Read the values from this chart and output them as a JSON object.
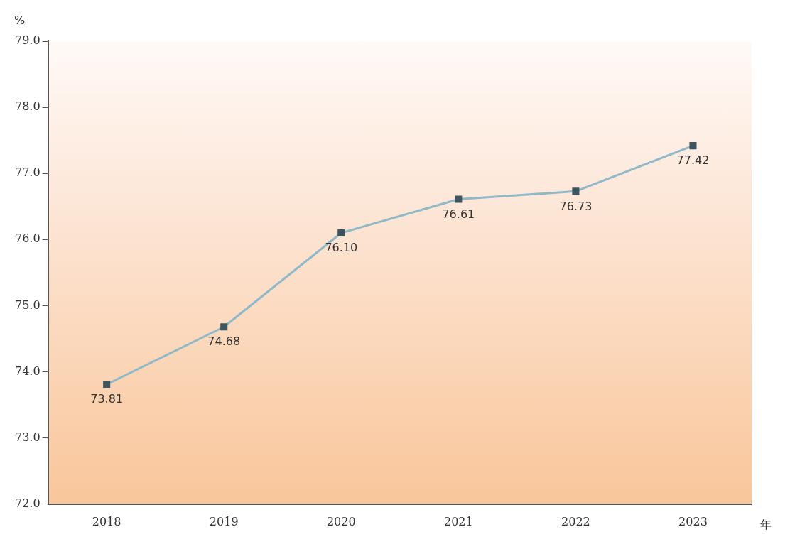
{
  "chart_data": {
    "type": "line",
    "categories": [
      "2018",
      "2019",
      "2020",
      "2021",
      "2022",
      "2023"
    ],
    "series": [
      {
        "color": "#8fb8c8",
        "values": [
          73.81,
          74.68,
          76.1,
          76.61,
          76.73,
          77.42
        ],
        "value_labels": [
          "73.81",
          "74.68",
          "76.10",
          "76.61",
          "76.73",
          "77.42"
        ]
      }
    ],
    "ylim": [
      72,
      79
    ],
    "yticks": [
      {
        "value": 72,
        "label": "72.0"
      },
      {
        "value": 73,
        "label": "73.0"
      },
      {
        "value": 74,
        "label": "74.0"
      },
      {
        "value": 75,
        "label": "75.0"
      },
      {
        "value": 76,
        "label": "76.0"
      },
      {
        "value": 77,
        "label": "77.0"
      },
      {
        "value": 78,
        "label": "78.0"
      },
      {
        "value": 79,
        "label": "79.0"
      }
    ],
    "ylabel": "%",
    "xlabel": "年",
    "marker": "square",
    "grid": false,
    "legend": false
  }
}
